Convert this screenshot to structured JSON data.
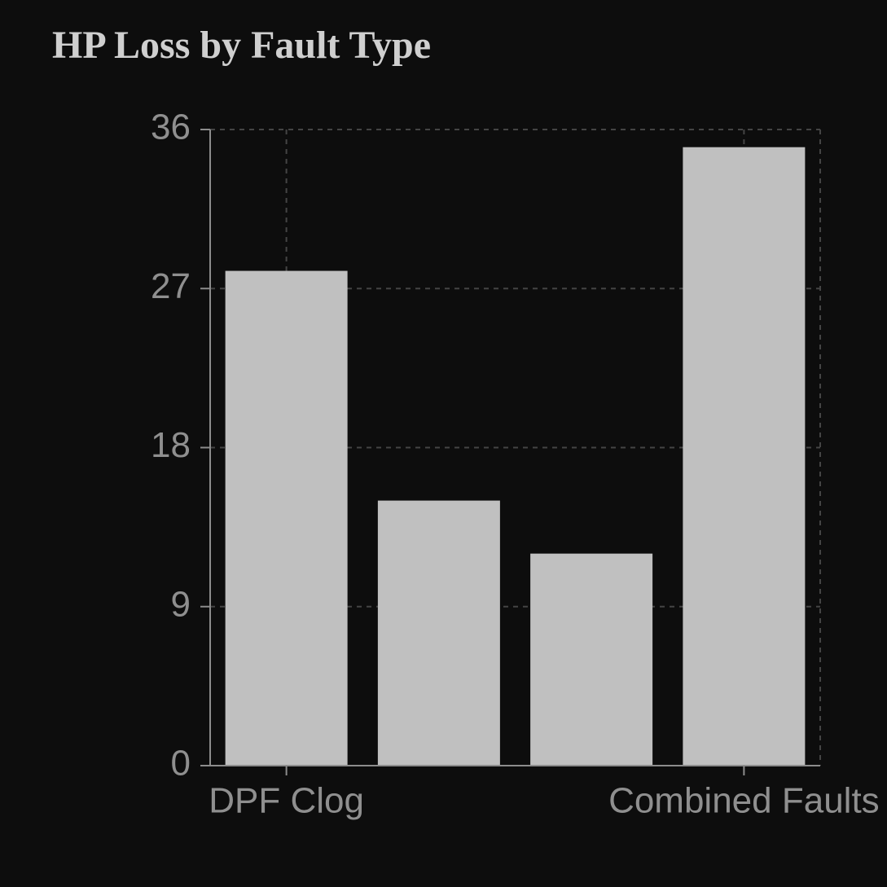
{
  "colors": {
    "background": "#0d0d0d",
    "bar": "#c0c0c0",
    "axis": "#8c8c8c",
    "grid": "#444444",
    "tick_text": "#8f8f8f",
    "title": "#cfcfcf"
  },
  "chart_data": {
    "type": "bar",
    "title": "HP Loss by Fault Type",
    "xlabel": "",
    "ylabel": "",
    "categories": [
      "DPF Clog",
      "",
      "",
      "Combined Faults"
    ],
    "values": [
      28,
      15,
      12,
      35
    ],
    "ylim": [
      0,
      36
    ],
    "yticks": [
      0,
      9,
      18,
      27,
      36
    ],
    "xtick_labels": [
      "DPF Clog",
      "Combined Faults"
    ],
    "xtick_indices": [
      0,
      3
    ],
    "grid": true,
    "legend": "none"
  }
}
